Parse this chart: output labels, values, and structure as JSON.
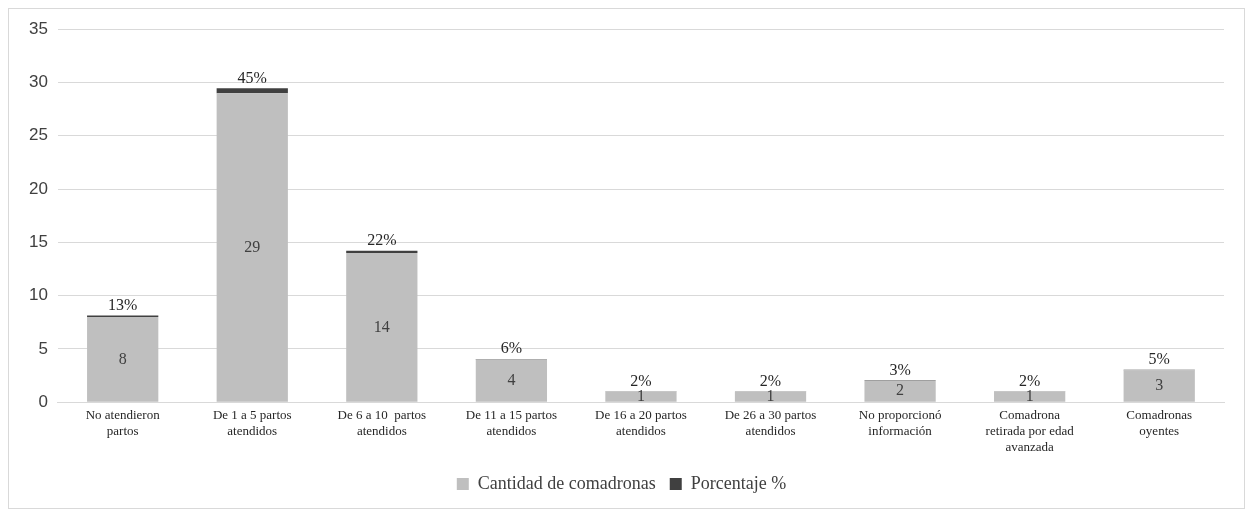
{
  "chart_data": {
    "type": "bar",
    "stacked": true,
    "categories": [
      "No atendieron partos",
      "De 1 a 5 partos atendidos",
      "De 6 a 10  partos atendidos",
      "De 11 a 15 partos atendidos",
      "De 16 a 20 partos atendidos",
      "De 26 a 30 partos atendidos",
      "No proporcionó información",
      "Comadrona retirada por edad avanzada",
      "Comadronas oyentes"
    ],
    "series": [
      {
        "name": "Cantidad de comadronas",
        "color": "#bfbfbf",
        "values": [
          8,
          29,
          14,
          4,
          1,
          1,
          2,
          1,
          3
        ],
        "value_labels": [
          "8",
          "29",
          "14",
          "4",
          "1",
          "1",
          "2",
          "1",
          "3"
        ]
      },
      {
        "name": "Porcentaje %",
        "color": "#404040",
        "values": [
          0.13,
          0.45,
          0.22,
          0.06,
          0.02,
          0.02,
          0.03,
          0.02,
          0.05
        ],
        "value_labels": [
          "13%",
          "45%",
          "22%",
          "6%",
          "2%",
          "2%",
          "3%",
          "2%",
          "5%"
        ]
      }
    ],
    "ylim": [
      0,
      35
    ],
    "yticks": [
      0,
      5,
      10,
      15,
      20,
      25,
      30,
      35
    ],
    "grid": "y",
    "legend": "bottom"
  }
}
